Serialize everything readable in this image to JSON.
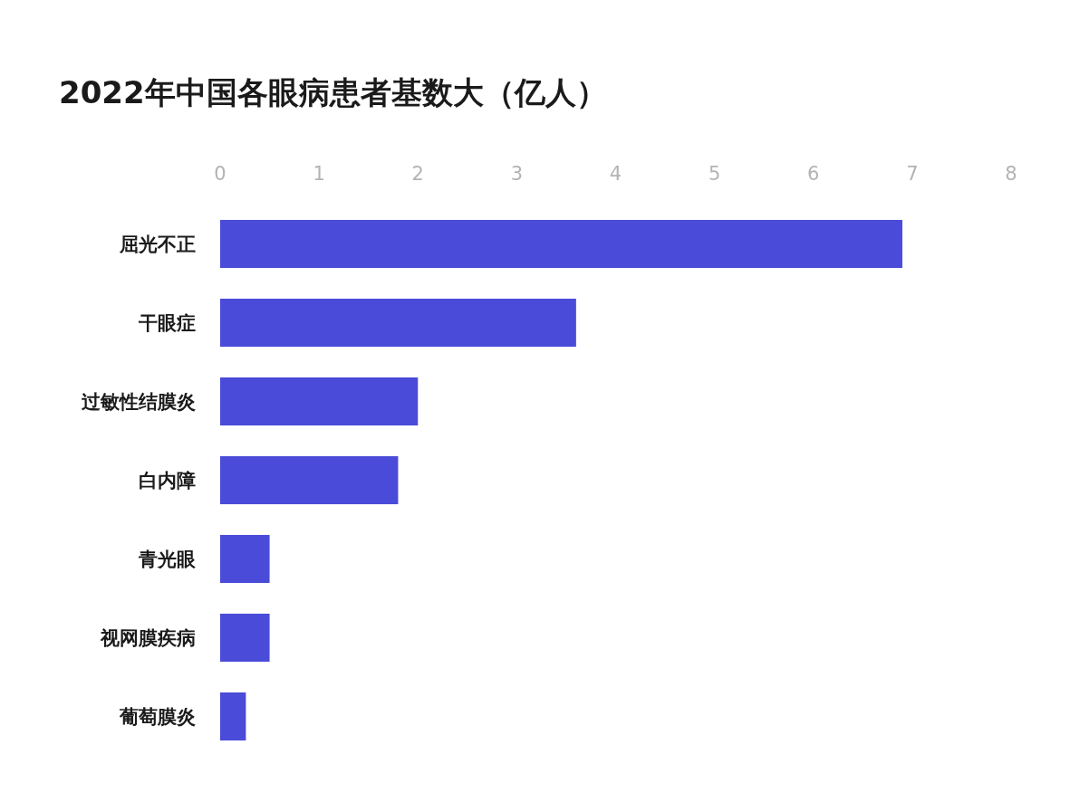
{
  "chart_data": {
    "type": "bar",
    "orientation": "horizontal",
    "title": "2022年中国各眼病患者基数大（亿人）",
    "categories": [
      "屈光不正",
      "干眼症",
      "过敏性结膜炎",
      "白内障",
      "青光眼",
      "视网膜疾病",
      "葡萄膜炎"
    ],
    "values": [
      6.9,
      3.6,
      2.0,
      1.8,
      0.5,
      0.5,
      0.26
    ],
    "color": "#4a4bd8",
    "xlim": [
      0,
      8
    ],
    "xticks": [
      0,
      1,
      2,
      3,
      4,
      5,
      6,
      7,
      8
    ]
  }
}
